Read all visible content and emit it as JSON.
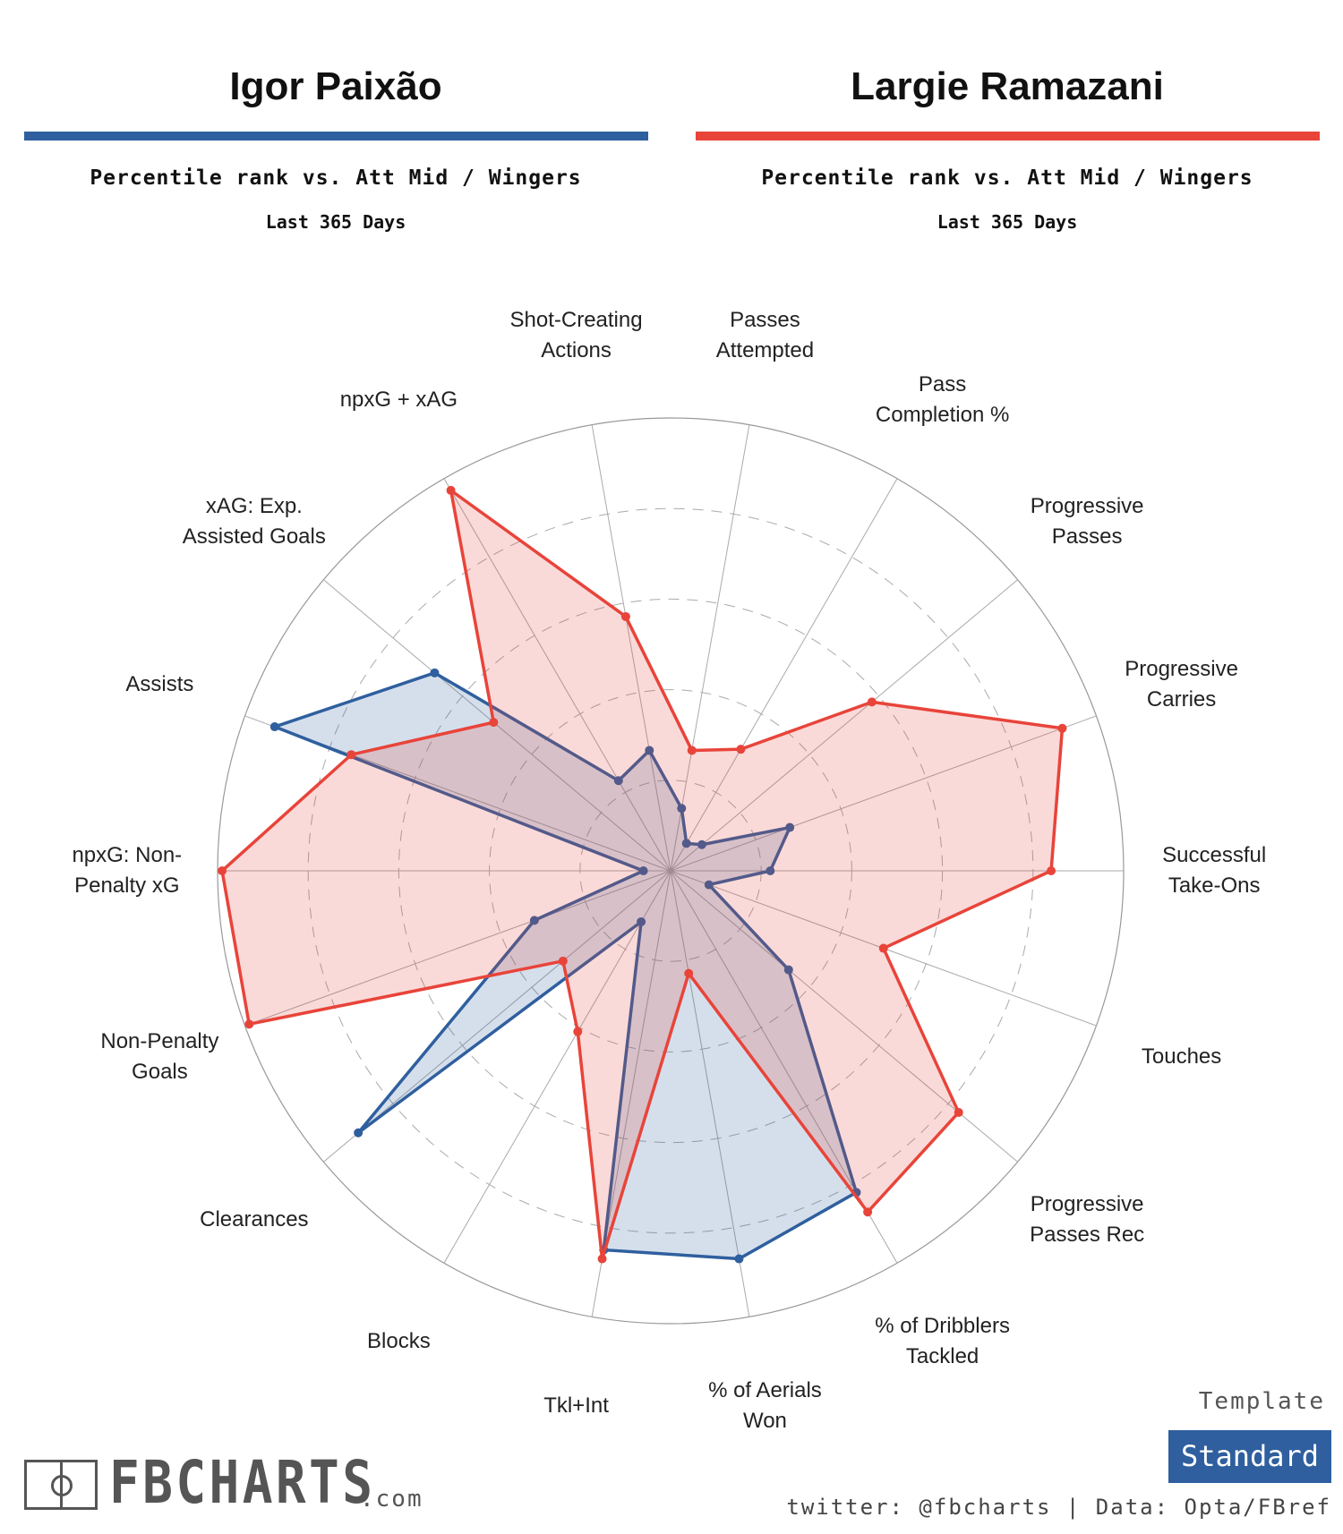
{
  "chart_data": {
    "type": "radar",
    "subtitle": "Percentile rank vs. Att Mid / Wingers",
    "period": "Last 365 Days",
    "categories": [
      "Shot-Creating Actions",
      "Passes Attempted",
      "Pass Completion %",
      "Progressive Passes",
      "Progressive Carries",
      "Successful Take-Ons",
      "Touches",
      "Progressive Passes Rec",
      "% of Dribblers Tackled",
      "% of Aerials Won",
      "Tkl+Int",
      "Blocks",
      "Clearances",
      "Non-Penalty Goals",
      "npxG: Non-Penalty xG",
      "Assists",
      "xAG: Exp. Assisted Goals",
      "npxG + xAG"
    ],
    "series": [
      {
        "name": "Igor Paixão",
        "color": "#2f5f9e",
        "values": [
          27,
          14,
          7,
          9,
          28,
          22,
          9,
          34,
          82,
          87,
          85,
          13,
          90,
          32,
          6,
          93,
          68,
          23
        ]
      },
      {
        "name": "Largie Ramazani",
        "color": "#e8443a",
        "values": [
          57,
          27,
          31,
          58,
          92,
          84,
          50,
          83,
          87,
          23,
          87,
          41,
          31,
          99,
          99,
          75,
          51,
          97
        ]
      }
    ],
    "rlim": [
      0,
      100
    ],
    "rticks": [
      20,
      40,
      60,
      80,
      100
    ]
  },
  "footer": {
    "template_label": "Template",
    "template": "Standard",
    "credit": "twitter: @fbcharts | Data: Opta/FBref",
    "logo": "FBCHARTS",
    "logo_suffix": ".com"
  }
}
